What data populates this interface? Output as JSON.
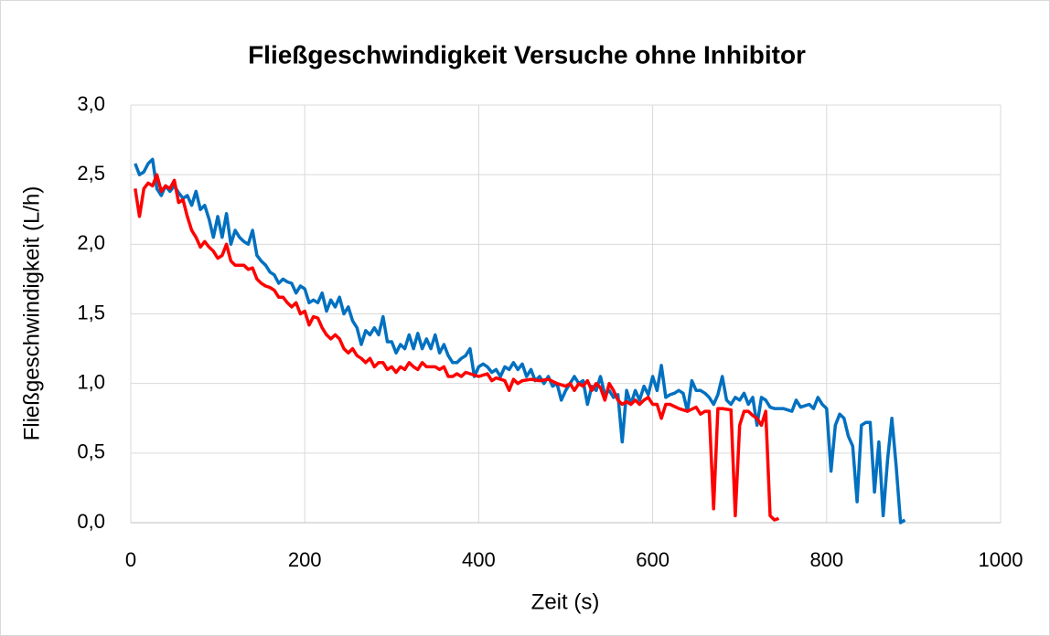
{
  "chart_data": {
    "type": "line",
    "title": "Fließgeschwindigkeit Versuche ohne Inhibitor",
    "xlabel": "Zeit (s)",
    "ylabel": "Fließgeschwindigkeit (L/h)",
    "xlim": [
      0,
      1000
    ],
    "xticks": [
      0,
      200,
      400,
      600,
      800,
      1000
    ],
    "ylim": [
      0,
      3
    ],
    "yticks": [
      {
        "value": 0,
        "label": "0,0"
      },
      {
        "value": 0.5,
        "label": "0,5"
      },
      {
        "value": 1,
        "label": "1,0"
      },
      {
        "value": 1.5,
        "label": "1,5"
      },
      {
        "value": 2,
        "label": "2,0"
      },
      {
        "value": 2.5,
        "label": "2,5"
      },
      {
        "value": 3,
        "label": "3,0"
      }
    ],
    "grid": true,
    "series": [
      {
        "color": "#0070c0",
        "x": [
          5,
          10,
          15,
          20,
          25,
          30,
          35,
          40,
          45,
          50,
          55,
          60,
          65,
          70,
          75,
          80,
          85,
          90,
          95,
          100,
          105,
          110,
          115,
          120,
          125,
          130,
          135,
          140,
          145,
          150,
          155,
          160,
          165,
          170,
          175,
          180,
          185,
          190,
          195,
          200,
          205,
          210,
          215,
          220,
          225,
          230,
          235,
          240,
          245,
          250,
          255,
          260,
          265,
          270,
          275,
          280,
          285,
          290,
          295,
          300,
          305,
          310,
          315,
          320,
          325,
          330,
          335,
          340,
          345,
          350,
          355,
          360,
          365,
          370,
          375,
          380,
          385,
          390,
          395,
          400,
          405,
          410,
          415,
          420,
          425,
          430,
          435,
          440,
          445,
          450,
          455,
          460,
          465,
          470,
          475,
          480,
          485,
          490,
          495,
          500,
          505,
          510,
          515,
          520,
          525,
          530,
          535,
          540,
          545,
          550,
          555,
          560,
          565,
          570,
          575,
          580,
          585,
          590,
          595,
          600,
          605,
          610,
          615,
          620,
          625,
          630,
          635,
          640,
          645,
          650,
          655,
          660,
          665,
          670,
          675,
          680,
          685,
          690,
          695,
          700,
          705,
          710,
          715,
          720,
          725,
          730,
          735,
          740,
          750,
          760,
          765,
          770,
          780,
          785,
          790,
          795,
          800,
          805,
          810,
          815,
          820,
          825,
          830,
          835,
          840,
          845,
          850,
          855,
          860,
          865,
          870,
          875,
          880,
          885,
          890
        ],
        "values": [
          2.58,
          2.5,
          2.52,
          2.58,
          2.61,
          2.4,
          2.35,
          2.42,
          2.38,
          2.42,
          2.37,
          2.33,
          2.35,
          2.28,
          2.38,
          2.25,
          2.28,
          2.18,
          2.05,
          2.2,
          2.05,
          2.22,
          2.0,
          2.1,
          2.05,
          2.02,
          2.0,
          2.1,
          1.92,
          1.88,
          1.85,
          1.8,
          1.78,
          1.72,
          1.75,
          1.73,
          1.72,
          1.65,
          1.7,
          1.68,
          1.58,
          1.6,
          1.58,
          1.65,
          1.52,
          1.6,
          1.55,
          1.62,
          1.5,
          1.55,
          1.45,
          1.4,
          1.28,
          1.38,
          1.35,
          1.4,
          1.35,
          1.48,
          1.3,
          1.3,
          1.22,
          1.28,
          1.25,
          1.35,
          1.25,
          1.36,
          1.25,
          1.32,
          1.25,
          1.35,
          1.22,
          1.28,
          1.2,
          1.15,
          1.15,
          1.18,
          1.2,
          1.25,
          1.05,
          1.12,
          1.14,
          1.12,
          1.08,
          1.1,
          1.05,
          1.12,
          1.1,
          1.15,
          1.1,
          1.14,
          1.05,
          1.1,
          1.02,
          1.05,
          1.0,
          1.05,
          0.98,
          1.0,
          0.88,
          0.95,
          1.0,
          1.05,
          1.0,
          1.02,
          0.85,
          0.98,
          0.95,
          1.05,
          0.92,
          0.95,
          0.9,
          0.92,
          0.58,
          0.95,
          0.85,
          0.95,
          0.88,
          0.98,
          0.92,
          1.05,
          0.95,
          1.13,
          0.9,
          0.92,
          0.93,
          0.95,
          0.93,
          0.8,
          1.02,
          0.95,
          0.95,
          0.93,
          0.9,
          0.85,
          0.92,
          1.05,
          0.88,
          0.85,
          0.9,
          0.88,
          0.93,
          0.85,
          0.9,
          0.7,
          0.9,
          0.88,
          0.83,
          0.82,
          0.82,
          0.8,
          0.88,
          0.83,
          0.85,
          0.82,
          0.9,
          0.85,
          0.82,
          0.37,
          0.7,
          0.78,
          0.75,
          0.62,
          0.55,
          0.15,
          0.7,
          0.72,
          0.72,
          0.22,
          0.58,
          0.05,
          0.45,
          0.75,
          0.4,
          0.0,
          0.02
        ]
      },
      {
        "color": "#ff0000",
        "x": [
          5,
          10,
          15,
          20,
          25,
          30,
          35,
          40,
          45,
          50,
          55,
          60,
          65,
          70,
          75,
          80,
          85,
          90,
          95,
          100,
          105,
          110,
          115,
          120,
          130,
          135,
          140,
          145,
          150,
          155,
          160,
          165,
          170,
          175,
          180,
          185,
          190,
          195,
          200,
          205,
          210,
          215,
          220,
          225,
          230,
          235,
          240,
          245,
          250,
          255,
          260,
          265,
          270,
          275,
          280,
          285,
          290,
          295,
          300,
          305,
          310,
          315,
          320,
          325,
          330,
          335,
          340,
          350,
          355,
          360,
          365,
          370,
          375,
          380,
          385,
          390,
          400,
          410,
          415,
          420,
          430,
          435,
          440,
          445,
          450,
          460,
          470,
          480,
          490,
          500,
          505,
          510,
          515,
          520,
          525,
          530,
          535,
          540,
          545,
          550,
          555,
          560,
          565,
          570,
          575,
          580,
          585,
          590,
          595,
          600,
          605,
          610,
          615,
          620,
          630,
          640,
          650,
          655,
          660,
          665,
          670,
          675,
          680,
          690,
          695,
          700,
          705,
          710,
          715,
          720,
          725,
          730,
          735,
          740,
          745
        ],
        "values": [
          2.4,
          2.2,
          2.4,
          2.44,
          2.42,
          2.5,
          2.38,
          2.42,
          2.4,
          2.46,
          2.3,
          2.32,
          2.2,
          2.1,
          2.05,
          1.98,
          2.02,
          1.98,
          1.95,
          1.9,
          1.92,
          2.0,
          1.88,
          1.85,
          1.85,
          1.82,
          1.83,
          1.75,
          1.72,
          1.7,
          1.69,
          1.67,
          1.62,
          1.62,
          1.58,
          1.55,
          1.58,
          1.5,
          1.52,
          1.42,
          1.48,
          1.47,
          1.4,
          1.35,
          1.32,
          1.35,
          1.32,
          1.25,
          1.22,
          1.25,
          1.2,
          1.18,
          1.15,
          1.18,
          1.12,
          1.15,
          1.15,
          1.1,
          1.12,
          1.08,
          1.12,
          1.1,
          1.15,
          1.12,
          1.1,
          1.15,
          1.12,
          1.12,
          1.1,
          1.12,
          1.05,
          1.05,
          1.07,
          1.05,
          1.08,
          1.07,
          1.05,
          1.07,
          1.02,
          1.04,
          1.02,
          0.95,
          1.03,
          1.0,
          1.02,
          1.03,
          1.02,
          1.03,
          1.0,
          0.98,
          1.0,
          0.95,
          1.0,
          0.98,
          1.02,
          0.95,
          1.0,
          0.97,
          0.88,
          1.0,
          0.95,
          0.88,
          0.85,
          0.87,
          0.85,
          0.88,
          0.85,
          0.88,
          0.9,
          0.85,
          0.85,
          0.75,
          0.85,
          0.85,
          0.82,
          0.8,
          0.83,
          0.78,
          0.8,
          0.8,
          0.1,
          0.82,
          0.82,
          0.81,
          0.05,
          0.7,
          0.8,
          0.8,
          0.77,
          0.75,
          0.7,
          0.8,
          0.05,
          0.02,
          0.03
        ]
      }
    ]
  }
}
